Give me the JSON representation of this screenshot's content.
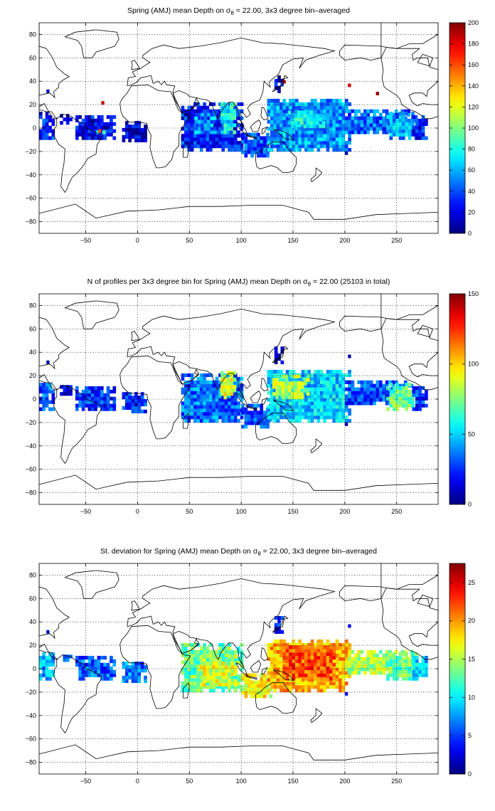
{
  "chart_data": [
    {
      "type": "heatmap",
      "title_pre": "Spring (AMJ) mean Depth on ",
      "title_sym": "σ",
      "title_sub": "θ",
      "title_post": " = 22.00, 3x3 degree bin–averaged",
      "xticks": [
        -50,
        0,
        50,
        100,
        150,
        200,
        250
      ],
      "yticks": [
        -80,
        -60,
        -40,
        -20,
        0,
        20,
        40,
        60,
        80
      ],
      "xlim": [
        -95,
        290
      ],
      "ylim": [
        -90,
        90
      ],
      "clim": [
        0,
        200
      ],
      "cticks": [
        0,
        20,
        40,
        60,
        80,
        100,
        120,
        140,
        160,
        180,
        200
      ],
      "grid": true,
      "colormap": "jet",
      "regions": [
        {
          "lon": [
            -95,
            -82
          ],
          "lat": [
            -10,
            12
          ],
          "value": 30
        },
        {
          "lon": [
            -75,
            -65
          ],
          "lat": [
            3,
            12
          ],
          "value": 20
        },
        {
          "lon": [
            -60,
            -22
          ],
          "lat": [
            -10,
            10
          ],
          "value": 22
        },
        {
          "lon": [
            -40,
            -32
          ],
          "lat": [
            -5,
            -2
          ],
          "value": 85
        },
        {
          "lon": [
            -15,
            8
          ],
          "lat": [
            -12,
            6
          ],
          "value": 18
        },
        {
          "lon": [
            42,
            100
          ],
          "lat": [
            -20,
            20
          ],
          "value": 30
        },
        {
          "lon": [
            80,
            95
          ],
          "lat": [
            -5,
            22
          ],
          "value": 75
        },
        {
          "lon": [
            55,
            75
          ],
          "lat": [
            -5,
            12
          ],
          "value": 55
        },
        {
          "lon": [
            100,
            130
          ],
          "lat": [
            -25,
            -5
          ],
          "value": 40
        },
        {
          "lon": [
            125,
            205
          ],
          "lat": [
            -20,
            25
          ],
          "value": 55
        },
        {
          "lon": [
            145,
            180
          ],
          "lat": [
            0,
            15
          ],
          "value": 75
        },
        {
          "lon": [
            200,
            265
          ],
          "lat": [
            -5,
            15
          ],
          "value": 45
        },
        {
          "lon": [
            240,
            270
          ],
          "lat": [
            -10,
            12
          ],
          "value": 60
        },
        {
          "lon": [
            265,
            280
          ],
          "lat": [
            -10,
            10
          ],
          "value": 30
        },
        {
          "lon": [
            132,
            140
          ],
          "lat": [
            30,
            45
          ],
          "value": 20
        }
      ],
      "points": [
        {
          "lon": -35,
          "lat": 20,
          "value": 185
        },
        {
          "lon": 140,
          "lat": 38,
          "value": 190
        },
        {
          "lon": 203,
          "lat": 35,
          "value": 185
        },
        {
          "lon": 230,
          "lat": 28,
          "value": 195
        },
        {
          "lon": -88,
          "lat": 30,
          "value": 10
        },
        {
          "lon": 200,
          "lat": -23,
          "value": 10
        },
        {
          "lon": -38,
          "lat": -4,
          "value": 160
        }
      ]
    },
    {
      "type": "heatmap",
      "title_pre": "N of profiles per 3x3 degree bin for Spring (AMJ) mean Depth on ",
      "title_sym": "σ",
      "title_sub": "θ",
      "title_post": " = 22.00 (25103 in total)",
      "xticks": [
        -50,
        0,
        50,
        100,
        150,
        200,
        250
      ],
      "yticks": [
        -80,
        -60,
        -40,
        -20,
        0,
        20,
        40,
        60,
        80
      ],
      "xlim": [
        -95,
        290
      ],
      "ylim": [
        -90,
        90
      ],
      "clim": [
        0,
        150
      ],
      "cticks": [
        0,
        50,
        100,
        150
      ],
      "grid": true,
      "colormap": "jet",
      "regions": [
        {
          "lon": [
            -95,
            -82
          ],
          "lat": [
            -10,
            12
          ],
          "value": 30
        },
        {
          "lon": [
            -75,
            -65
          ],
          "lat": [
            3,
            12
          ],
          "value": 15
        },
        {
          "lon": [
            -60,
            -22
          ],
          "lat": [
            -10,
            10
          ],
          "value": 25
        },
        {
          "lon": [
            -15,
            8
          ],
          "lat": [
            -12,
            6
          ],
          "value": 22
        },
        {
          "lon": [
            42,
            100
          ],
          "lat": [
            -20,
            20
          ],
          "value": 35
        },
        {
          "lon": [
            80,
            95
          ],
          "lat": [
            0,
            22
          ],
          "value": 90
        },
        {
          "lon": [
            100,
            130
          ],
          "lat": [
            -25,
            -5
          ],
          "value": 30
        },
        {
          "lon": [
            125,
            205
          ],
          "lat": [
            -20,
            25
          ],
          "value": 50
        },
        {
          "lon": [
            130,
            165
          ],
          "lat": [
            0,
            20
          ],
          "value": 80
        },
        {
          "lon": [
            200,
            265
          ],
          "lat": [
            -5,
            15
          ],
          "value": 30
        },
        {
          "lon": [
            240,
            270
          ],
          "lat": [
            -10,
            12
          ],
          "value": 70
        },
        {
          "lon": [
            265,
            280
          ],
          "lat": [
            -10,
            10
          ],
          "value": 25
        },
        {
          "lon": [
            132,
            140
          ],
          "lat": [
            30,
            45
          ],
          "value": 15
        }
      ],
      "points": [
        {
          "lon": -88,
          "lat": 30,
          "value": 5
        },
        {
          "lon": 203,
          "lat": 35,
          "value": 5
        },
        {
          "lon": 200,
          "lat": -23,
          "value": 5
        }
      ]
    },
    {
      "type": "heatmap",
      "title_pre": "St. deviation for Spring (AMJ) mean Depth on ",
      "title_sym": "σ",
      "title_sub": "θ",
      "title_post": " = 22.00, 3x3 degree bin–averaged",
      "xticks": [
        -50,
        0,
        50,
        100,
        150,
        200,
        250
      ],
      "yticks": [
        -80,
        -60,
        -40,
        -20,
        0,
        20,
        40,
        60,
        80
      ],
      "xlim": [
        -95,
        290
      ],
      "ylim": [
        -90,
        90
      ],
      "clim": [
        0,
        27.5
      ],
      "cticks": [
        0,
        5,
        10,
        15,
        20,
        25
      ],
      "grid": true,
      "colormap": "jet",
      "regions": [
        {
          "lon": [
            -95,
            -82
          ],
          "lat": [
            -10,
            12
          ],
          "value": 8
        },
        {
          "lon": [
            -75,
            -65
          ],
          "lat": [
            3,
            12
          ],
          "value": 8
        },
        {
          "lon": [
            -60,
            -22
          ],
          "lat": [
            -10,
            10
          ],
          "value": 6
        },
        {
          "lon": [
            -15,
            8
          ],
          "lat": [
            -12,
            6
          ],
          "value": 7
        },
        {
          "lon": [
            42,
            100
          ],
          "lat": [
            -20,
            20
          ],
          "value": 13
        },
        {
          "lon": [
            60,
            95
          ],
          "lat": [
            -15,
            10
          ],
          "value": 16
        },
        {
          "lon": [
            100,
            130
          ],
          "lat": [
            -25,
            -5
          ],
          "value": 17
        },
        {
          "lon": [
            125,
            205
          ],
          "lat": [
            -20,
            25
          ],
          "value": 19
        },
        {
          "lon": [
            140,
            190
          ],
          "lat": [
            -10,
            20
          ],
          "value": 22
        },
        {
          "lon": [
            200,
            265
          ],
          "lat": [
            -5,
            15
          ],
          "value": 15
        },
        {
          "lon": [
            240,
            270
          ],
          "lat": [
            -10,
            12
          ],
          "value": 13
        },
        {
          "lon": [
            265,
            280
          ],
          "lat": [
            -10,
            10
          ],
          "value": 9
        },
        {
          "lon": [
            132,
            140
          ],
          "lat": [
            30,
            45
          ],
          "value": 4
        }
      ],
      "points": [
        {
          "lon": -88,
          "lat": 30,
          "value": 2
        },
        {
          "lon": 203,
          "lat": 35,
          "value": 3
        },
        {
          "lon": 200,
          "lat": -23,
          "value": 3
        }
      ]
    }
  ]
}
